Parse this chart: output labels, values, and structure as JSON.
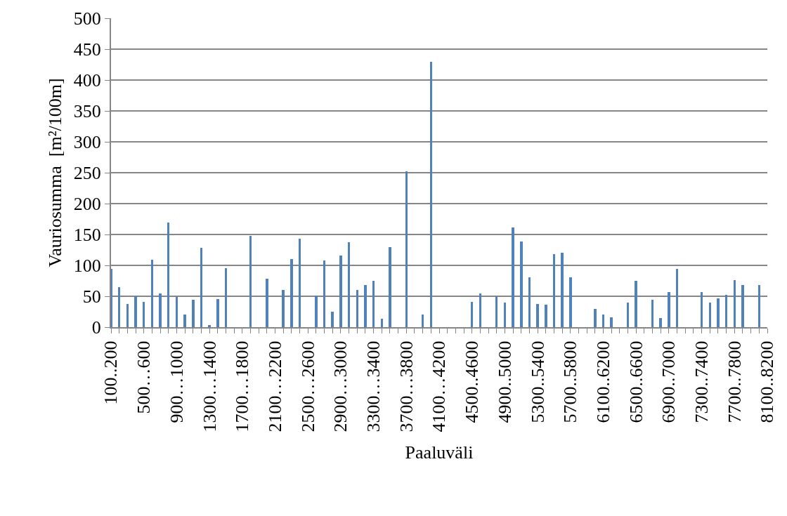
{
  "chart_data": {
    "type": "bar",
    "xlabel": "Paaluväli",
    "ylabel": "Vauriosumma  [m²/100m]",
    "categories": [
      "100..200",
      null,
      null,
      null,
      "500…600",
      null,
      null,
      null,
      "900…1000",
      null,
      null,
      null,
      "1300…1400",
      null,
      null,
      null,
      "1700…1800",
      null,
      null,
      null,
      "2100…2200",
      null,
      null,
      null,
      "2500…2600",
      null,
      null,
      null,
      "2900…3000",
      null,
      null,
      null,
      "3300…3400",
      null,
      null,
      null,
      "3700…3800",
      null,
      null,
      null,
      "4100…4200",
      null,
      null,
      null,
      "4500..4600",
      null,
      null,
      null,
      "4900..5000",
      null,
      null,
      null,
      "5300..5400",
      null,
      null,
      null,
      "5700..5800",
      null,
      null,
      null,
      "6100..6200",
      null,
      null,
      null,
      "6500..6600",
      null,
      null,
      null,
      "6900..7000",
      null,
      null,
      null,
      "7300..7400",
      null,
      null,
      null,
      "7700..7800",
      null,
      null,
      null,
      "8100..8200"
    ],
    "values": [
      94,
      65,
      38,
      50,
      41,
      109,
      55,
      169,
      49,
      21,
      44,
      128,
      3,
      46,
      95,
      null,
      null,
      148,
      null,
      78,
      null,
      60,
      110,
      143,
      null,
      51,
      108,
      25,
      116,
      137,
      60,
      68,
      75,
      14,
      130,
      null,
      252,
      null,
      21,
      429,
      null,
      null,
      null,
      null,
      41,
      54,
      null,
      50,
      40,
      161,
      139,
      81,
      38,
      36,
      118,
      121,
      81,
      null,
      null,
      30,
      21,
      16,
      null,
      40,
      75,
      null,
      44,
      15,
      57,
      94,
      null,
      null,
      57,
      40,
      47,
      52,
      76,
      68,
      null,
      68,
      null
    ],
    "color": "#4f81bd",
    "ylim": [
      0,
      500
    ],
    "yticks": [
      0,
      50,
      100,
      150,
      200,
      250,
      300,
      350,
      400,
      450,
      500
    ],
    "grid": "y",
    "legend": false
  }
}
